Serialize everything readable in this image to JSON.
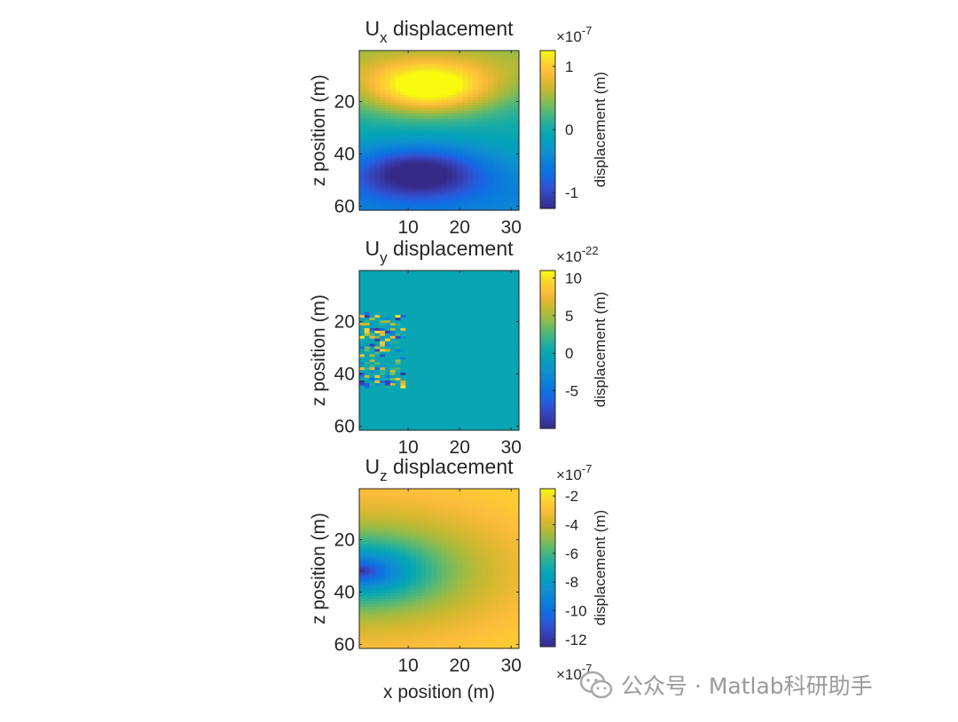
{
  "chart_data": [
    {
      "type": "heatmap",
      "title": "Ux displacement",
      "title_main": "U",
      "title_sub": "x",
      "title_rest": " displacement",
      "xlabel": "",
      "ylabel": "z position (m)",
      "xlim": [
        0.5,
        31.5
      ],
      "ylim": [
        0.5,
        61.5
      ],
      "y_reversed": true,
      "xticks": [
        "10",
        "20",
        "30"
      ],
      "xtick_values": [
        10,
        20,
        30
      ],
      "yticks": [
        "20",
        "40",
        "60"
      ],
      "ytick_values": [
        20,
        40,
        60
      ],
      "field": "ux",
      "colorbar": {
        "label": "displacement (m)",
        "exponent_base": "×10",
        "exponent": "-7",
        "range": [
          -1.25,
          1.25
        ],
        "tick_values": [
          -1,
          0,
          1
        ],
        "tick_labels": [
          "-1",
          "0",
          "1"
        ]
      }
    },
    {
      "type": "heatmap",
      "title": "Uy displacement",
      "title_main": "U",
      "title_sub": "y",
      "title_rest": " displacement",
      "xlabel": "",
      "ylabel": "z position (m)",
      "xlim": [
        0.5,
        31.5
      ],
      "ylim": [
        0.5,
        61.5
      ],
      "y_reversed": true,
      "xticks": [
        "10",
        "20",
        "30"
      ],
      "xtick_values": [
        10,
        20,
        30
      ],
      "yticks": [
        "20",
        "40",
        "60"
      ],
      "ytick_values": [
        20,
        40,
        60
      ],
      "field": "uy",
      "colorbar": {
        "label": "displacement (m)",
        "exponent_base": "×10",
        "exponent": "-22",
        "range": [
          -10,
          11
        ],
        "tick_values": [
          -5,
          0,
          5,
          10
        ],
        "tick_labels": [
          "-5",
          "0",
          "5",
          "10"
        ]
      }
    },
    {
      "type": "heatmap",
      "title": "Uz displacement",
      "title_main": "U",
      "title_sub": "z",
      "title_rest": " displacement",
      "xlabel": "x position (m)",
      "ylabel": "z position (m)",
      "xlim": [
        0.5,
        31.5
      ],
      "ylim": [
        0.5,
        61.5
      ],
      "y_reversed": true,
      "xticks": [
        "10",
        "20",
        "30"
      ],
      "xtick_values": [
        10,
        20,
        30
      ],
      "yticks": [
        "20",
        "40",
        "60"
      ],
      "ytick_values": [
        20,
        40,
        60
      ],
      "field": "uz",
      "colorbar": {
        "label": "displacement (m)",
        "exponent_base": "×10",
        "exponent": "-7",
        "range": [
          -12.5,
          -1.5
        ],
        "tick_values": [
          -12,
          -10,
          -8,
          -6,
          -4,
          -2
        ],
        "tick_labels": [
          "-12",
          "-10",
          "-8",
          "-6",
          "-4",
          "-2"
        ]
      }
    }
  ],
  "colormap": "parula",
  "watermark": {
    "text": "公众号 · Matlab科研助手",
    "icon": "wechat-icon"
  }
}
